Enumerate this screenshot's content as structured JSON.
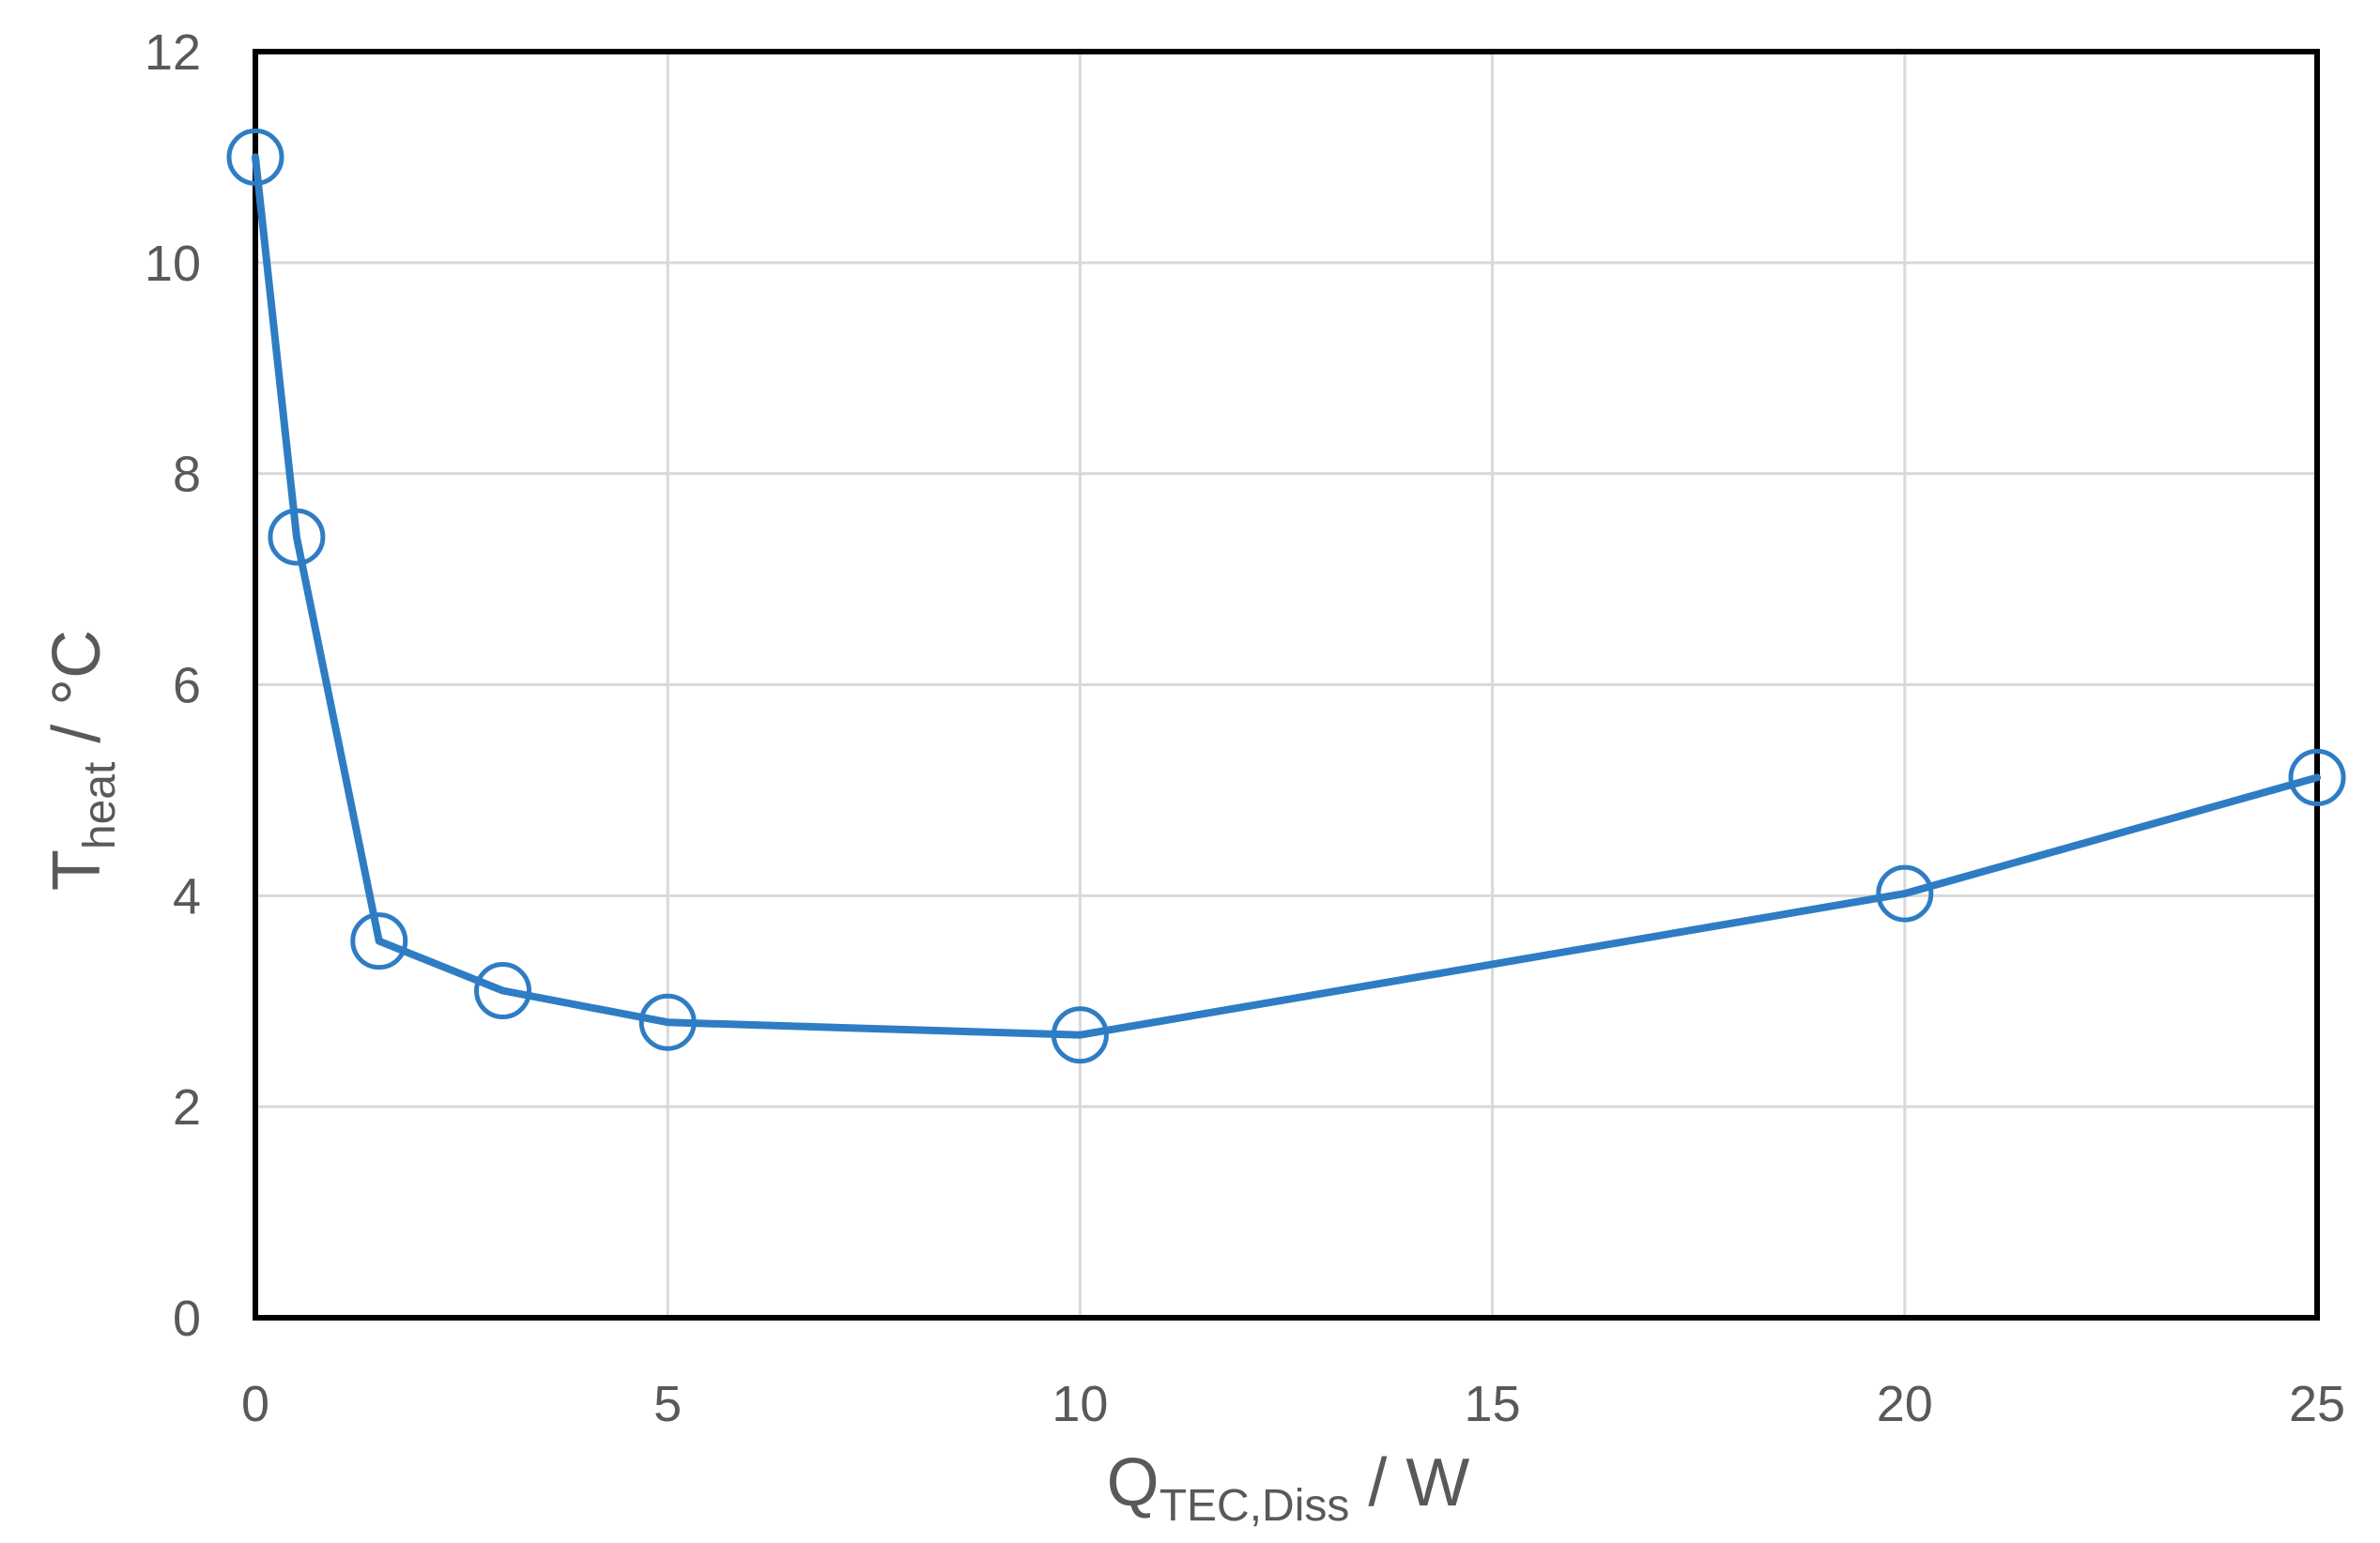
{
  "chart_data": {
    "type": "line",
    "title": "",
    "xlabel": {
      "main": "Q",
      "sub": "TEC,Diss",
      "unit": " / W"
    },
    "ylabel": {
      "main": "T",
      "sub": "heat",
      "unit": " / °C"
    },
    "xlim": [
      0,
      25
    ],
    "ylim": [
      0,
      12
    ],
    "xticks": [
      0,
      5,
      10,
      15,
      20,
      25
    ],
    "yticks": [
      0,
      2,
      4,
      6,
      8,
      10,
      12
    ],
    "grid": true,
    "legend": "none",
    "series": [
      {
        "color": "#2E7DC4",
        "marker": "open-circle",
        "x": [
          0,
          0.5,
          1.5,
          3,
          5,
          10,
          20,
          25
        ],
        "y": [
          11.0,
          7.4,
          3.57,
          3.1,
          2.8,
          2.68,
          4.02,
          5.12
        ]
      }
    ]
  }
}
